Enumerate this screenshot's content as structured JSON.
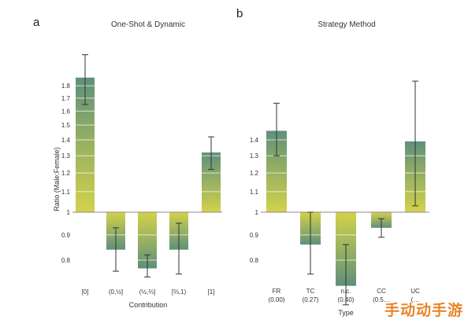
{
  "watermark": "手动动手游",
  "colors": {
    "green": "#5f907a",
    "yellow": "#d3d24a",
    "axis": "#8a8a8a",
    "error": "#333333"
  },
  "chart_data": [
    {
      "panel": "a",
      "type": "bar",
      "title": "One-Shot & Dynamic",
      "xlabel": "Contribution",
      "ylabel": "Ratio (Male:Female)",
      "scale": "log",
      "baseline": 1,
      "ylim": [
        0.7,
        2.1
      ],
      "yticks": [
        "0.8",
        "0.9",
        "1",
        "1.1",
        "1.2",
        "1.3",
        "1.4",
        "1.5",
        "1.6",
        "1.7",
        "1.8"
      ],
      "categories": [
        {
          "label": "[0]",
          "sub": ""
        },
        {
          "label": "(0,½]",
          "sub": ""
        },
        {
          "label": "(½,⅔]",
          "sub": ""
        },
        {
          "label": "[⅔,1)",
          "sub": ""
        },
        {
          "label": "[1]",
          "sub": ""
        }
      ],
      "values": [
        1.87,
        0.84,
        0.77,
        0.84,
        1.32
      ],
      "err_low": [
        1.65,
        0.76,
        0.74,
        0.75,
        1.22
      ],
      "err_high": [
        2.08,
        0.93,
        0.82,
        0.95,
        1.42
      ]
    },
    {
      "panel": "b",
      "type": "bar",
      "title": "Strategy Method",
      "xlabel": "Type",
      "ylabel": "",
      "scale": "log",
      "baseline": 1,
      "ylim": [
        0.62,
        1.95
      ],
      "yticks": [
        "0.8",
        "0.9",
        "1",
        "1.1",
        "1.2",
        "1.3",
        "1.4"
      ],
      "categories": [
        {
          "label": "FR",
          "sub": "(0.00)"
        },
        {
          "label": "TC",
          "sub": "(0.27)"
        },
        {
          "label": "n.c.",
          "sub": "(0.40)"
        },
        {
          "label": "CC",
          "sub": "(0.5…"
        },
        {
          "label": "UC",
          "sub": "(…"
        }
      ],
      "values": [
        1.46,
        0.86,
        0.71,
        0.93,
        1.39
      ],
      "err_low": [
        1.3,
        0.75,
        0.65,
        0.89,
        1.03
      ],
      "err_high": [
        1.66,
        1.0,
        0.86,
        0.97,
        1.84
      ]
    }
  ]
}
